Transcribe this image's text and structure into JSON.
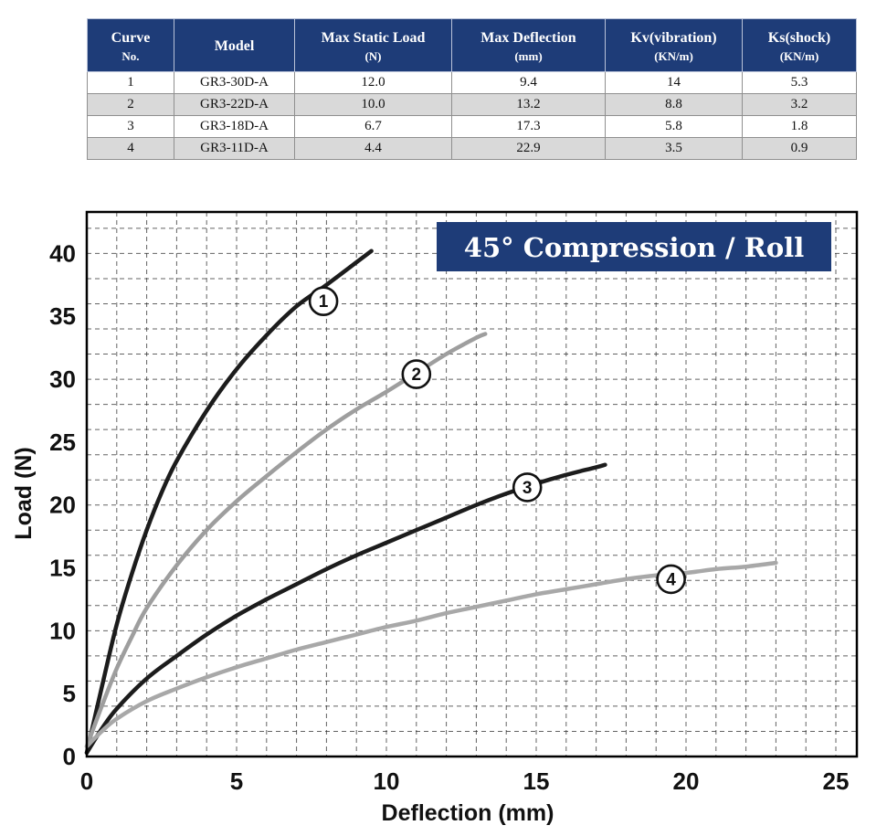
{
  "table": {
    "headers": [
      {
        "line1": "Curve",
        "line2": "No."
      },
      {
        "line1": "Model",
        "line2": ""
      },
      {
        "line1": "Max Static Load",
        "line2": "(N)"
      },
      {
        "line1": "Max Deflection",
        "line2": "(mm)"
      },
      {
        "line1": "Kv(vibration)",
        "line2": "(KN/m)"
      },
      {
        "line1": "Ks(shock)",
        "line2": "(KN/m)"
      }
    ],
    "rows": [
      [
        "1",
        "GR3-30D-A",
        "12.0",
        "9.4",
        "14",
        "5.3"
      ],
      [
        "2",
        "GR3-22D-A",
        "10.0",
        "13.2",
        "8.8",
        "3.2"
      ],
      [
        "3",
        "GR3-18D-A",
        "6.7",
        "17.3",
        "5.8",
        "1.8"
      ],
      [
        "4",
        "GR3-11D-A",
        "4.4",
        "22.9",
        "3.5",
        "0.9"
      ]
    ]
  },
  "chart_data": {
    "type": "line",
    "title": "45° Compression / Roll",
    "xlabel": "Deflection (mm)",
    "ylabel": "Load (N)",
    "xlim": [
      0,
      25
    ],
    "ylim": [
      0,
      43.3
    ],
    "x_ticks": [
      0,
      5,
      10,
      15,
      20,
      25
    ],
    "y_ticks": [
      0,
      5,
      10,
      15,
      20,
      25,
      30,
      35,
      40
    ],
    "grid": {
      "x_step": 1,
      "y_step": 2,
      "style": "dashed"
    },
    "colors": {
      "banner": "#1e3c78",
      "black_curve": "#1c1c1c",
      "gray_curve": "#a0a0a0"
    },
    "series": [
      {
        "name": "1",
        "color": "#1c1c1c",
        "label_at": [
          7.9,
          36.2
        ],
        "points": [
          [
            0,
            0.3
          ],
          [
            0.5,
            5.5
          ],
          [
            1,
            10.5
          ],
          [
            1.5,
            14.5
          ],
          [
            2,
            18
          ],
          [
            2.5,
            21
          ],
          [
            3,
            23.5
          ],
          [
            4,
            27.5
          ],
          [
            5,
            30.8
          ],
          [
            6,
            33.5
          ],
          [
            7,
            35.8
          ],
          [
            8,
            37.5
          ],
          [
            9,
            39.3
          ],
          [
            9.5,
            40.2
          ]
        ]
      },
      {
        "name": "2",
        "color": "#9e9e9e",
        "label_at": [
          11.0,
          30.4
        ],
        "points": [
          [
            0,
            0.8
          ],
          [
            0.5,
            4
          ],
          [
            1,
            7
          ],
          [
            1.5,
            9.5
          ],
          [
            2,
            11.8
          ],
          [
            3,
            15.2
          ],
          [
            4,
            18
          ],
          [
            5,
            20.3
          ],
          [
            6,
            22.3
          ],
          [
            7,
            24.2
          ],
          [
            8,
            26
          ],
          [
            9,
            27.6
          ],
          [
            10,
            29
          ],
          [
            11,
            30.5
          ],
          [
            12,
            32
          ],
          [
            13,
            33.3
          ],
          [
            13.3,
            33.6
          ]
        ]
      },
      {
        "name": "3",
        "color": "#1c1c1c",
        "label_at": [
          14.7,
          21.4
        ],
        "points": [
          [
            0,
            0.3
          ],
          [
            0.5,
            2.2
          ],
          [
            1,
            3.8
          ],
          [
            2,
            6.2
          ],
          [
            3,
            8
          ],
          [
            4,
            9.7
          ],
          [
            5,
            11.2
          ],
          [
            6,
            12.5
          ],
          [
            7,
            13.7
          ],
          [
            8,
            14.9
          ],
          [
            9,
            16
          ],
          [
            10,
            17
          ],
          [
            11,
            18
          ],
          [
            12,
            19
          ],
          [
            13,
            20
          ],
          [
            14,
            20.9
          ],
          [
            15,
            21.7
          ],
          [
            16,
            22.4
          ],
          [
            17,
            23
          ],
          [
            17.3,
            23.2
          ]
        ]
      },
      {
        "name": "4",
        "color": "#a8a8a8",
        "label_at": [
          19.5,
          14.1
        ],
        "points": [
          [
            0,
            0.8
          ],
          [
            0.5,
            2
          ],
          [
            1,
            3
          ],
          [
            2,
            4.4
          ],
          [
            3,
            5.4
          ],
          [
            4,
            6.3
          ],
          [
            5,
            7.1
          ],
          [
            6,
            7.8
          ],
          [
            7,
            8.5
          ],
          [
            8,
            9.1
          ],
          [
            9,
            9.7
          ],
          [
            10,
            10.3
          ],
          [
            11,
            10.8
          ],
          [
            12,
            11.4
          ],
          [
            13,
            11.9
          ],
          [
            14,
            12.4
          ],
          [
            15,
            12.9
          ],
          [
            16,
            13.3
          ],
          [
            17,
            13.7
          ],
          [
            18,
            14.1
          ],
          [
            19,
            14.4
          ],
          [
            20,
            14.6
          ],
          [
            21,
            14.9
          ],
          [
            22,
            15.1
          ],
          [
            23,
            15.4
          ]
        ]
      }
    ]
  }
}
